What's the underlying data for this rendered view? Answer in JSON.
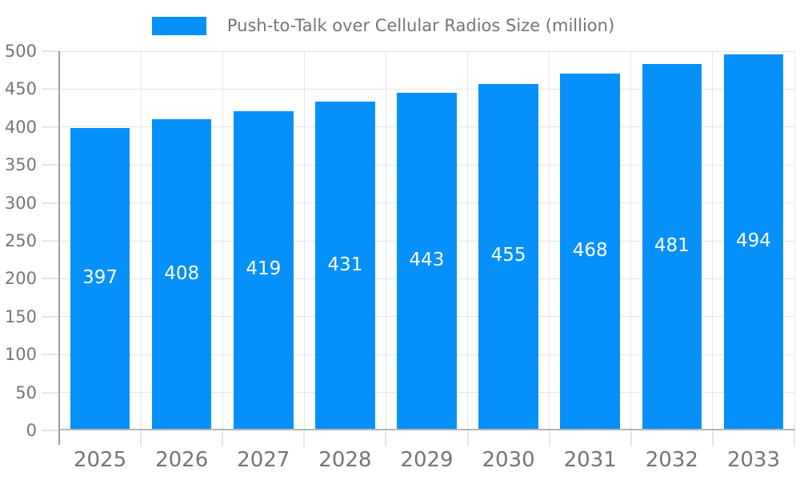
{
  "chart_data": {
    "type": "bar",
    "title": "Push-to-Talk over Cellular Radios Size (million)",
    "categories": [
      "2025",
      "2026",
      "2027",
      "2028",
      "2029",
      "2030",
      "2031",
      "2032",
      "2033"
    ],
    "values": [
      397,
      408,
      419,
      431,
      443,
      455,
      468,
      481,
      494
    ],
    "xlabel": "",
    "ylabel": "",
    "ylim": [
      0,
      500
    ],
    "ytick_step": 50,
    "grid": true,
    "legend_position": "top-center",
    "colors": {
      "bar": "#0690f9",
      "value_label": "#ffffff",
      "axis_text": "#757575",
      "gridline": "#e6e6e6",
      "y_axis_line": "#9e9e9e",
      "x_axis_line": "#b5b5b5",
      "background": "#ffffff"
    }
  }
}
